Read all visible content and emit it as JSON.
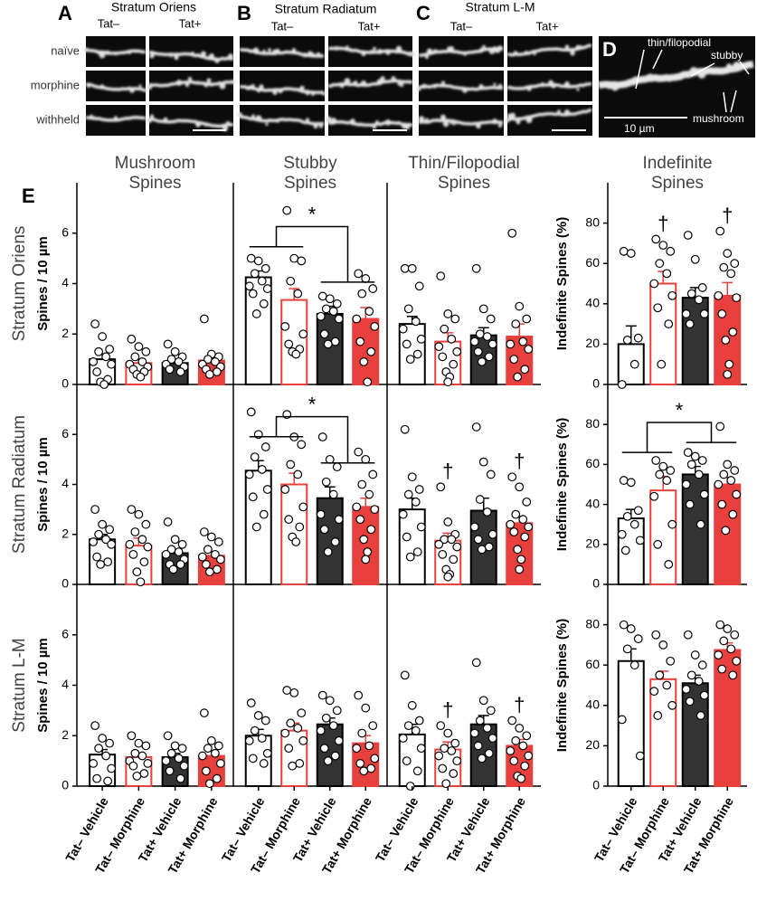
{
  "panel_a": {
    "label": "A",
    "title": "Stratum Oriens",
    "columns": [
      "Tat–",
      "Tat+"
    ]
  },
  "panel_b": {
    "label": "B",
    "title": "Stratum Radiatum",
    "columns": [
      "Tat–",
      "Tat+"
    ]
  },
  "panel_c": {
    "label": "C",
    "title": "Stratum L-M",
    "columns": [
      "Tat–",
      "Tat+"
    ]
  },
  "image_rows": [
    "naïve",
    "morphine",
    "withheld"
  ],
  "panel_d": {
    "label": "D",
    "annotations": [
      "thin/filopodial",
      "stubby",
      "mushroom"
    ],
    "scale_bar": "10 µm"
  },
  "panel_e_label": "E",
  "categories": [
    "Tat– Vehicle",
    "Tat– Morphine",
    "Tat+ Vehicle",
    "Tat+ Morphine"
  ],
  "bar_fills": [
    "#ffffff",
    "#ffffff",
    "#333333",
    "#e8403c"
  ],
  "bar_edges": [
    "#000000",
    "#e8403c",
    "#000000",
    "#e8403c"
  ],
  "chart_data": [
    {
      "type": "bar",
      "title": [
        "Mushroom",
        "Spines"
      ],
      "row_label": "Stratum Oriens",
      "ylabel": "Spines / 10 µm",
      "ylim": [
        0,
        8
      ],
      "yticks": [
        0,
        2,
        4,
        6
      ],
      "values": [
        1.0,
        0.85,
        0.85,
        0.95
      ],
      "errors": [
        0.2,
        0.12,
        0.1,
        0.15
      ],
      "points": [
        [
          2.4,
          1.9,
          1.4,
          1.3,
          1.1,
          0.9,
          0.8,
          0.5,
          0.2,
          0.1,
          0.0
        ],
        [
          1.8,
          1.5,
          1.3,
          1.1,
          0.9,
          0.8,
          0.7,
          0.6,
          0.5,
          0.4,
          0.3
        ],
        [
          1.6,
          1.3,
          1.1,
          1.0,
          0.9,
          0.8,
          0.7,
          0.6,
          0.5
        ],
        [
          2.6,
          1.2,
          1.1,
          1.0,
          0.9,
          0.8,
          0.7,
          0.6,
          0.5,
          0.4
        ]
      ]
    },
    {
      "type": "bar",
      "title": [
        "Stubby",
        "Spines"
      ],
      "ylim": [
        0,
        8
      ],
      "values": [
        4.25,
        3.35,
        2.8,
        2.6
      ],
      "errors": [
        0.25,
        0.45,
        0.3,
        0.45
      ],
      "comparison": "*",
      "points": [
        [
          5.0,
          4.9,
          4.6,
          4.4,
          4.1,
          3.9,
          3.8,
          3.6,
          3.2,
          2.8
        ],
        [
          6.9,
          5.0,
          4.9,
          4.1,
          3.6,
          2.3,
          2.0,
          1.6,
          1.4,
          1.3,
          1.2
        ],
        [
          3.5,
          3.4,
          3.2,
          3.0,
          2.9,
          2.7,
          2.6,
          2.0,
          1.7,
          1.6
        ],
        [
          4.4,
          4.2,
          3.8,
          3.6,
          2.9,
          2.6,
          2.3,
          1.7,
          1.3,
          0.9,
          0.1
        ]
      ]
    },
    {
      "type": "bar",
      "title": [
        "Thin/Filopodial",
        "Spines"
      ],
      "ylim": [
        0,
        8
      ],
      "values": [
        2.4,
        1.7,
        1.95,
        1.9
      ],
      "errors": [
        0.3,
        0.35,
        0.3,
        0.5
      ],
      "points": [
        [
          4.6,
          4.6,
          3.9,
          3.0,
          2.5,
          2.2,
          1.8,
          1.6,
          1.2,
          1.0
        ],
        [
          4.3,
          2.8,
          2.6,
          2.2,
          1.8,
          1.5,
          1.3,
          1.1,
          0.8,
          0.5,
          0.3,
          0.1
        ],
        [
          4.6,
          3.0,
          2.6,
          2.0,
          1.9,
          1.7,
          1.6,
          1.3,
          1.1,
          0.9
        ],
        [
          6.0,
          3.1,
          2.6,
          2.4,
          1.7,
          1.6,
          1.4,
          1.0,
          0.6,
          0.3
        ]
      ]
    },
    {
      "type": "bar",
      "title": [
        "Indefinite",
        "Spines"
      ],
      "ylabel": "Indefinite Spines (%)",
      "ylim": [
        0,
        100
      ],
      "yticks": [
        0,
        20,
        40,
        60,
        80
      ],
      "values": [
        20,
        50,
        43,
        44
      ],
      "errors": [
        9,
        6,
        5,
        6.5
      ],
      "markers": [
        null,
        "†",
        null,
        "†"
      ],
      "points": [
        [
          66,
          65,
          23,
          22,
          10,
          0
        ],
        [
          72,
          69,
          66,
          60,
          55,
          50,
          44,
          38,
          30,
          10
        ],
        [
          74,
          62,
          48,
          45,
          42,
          35,
          35,
          30
        ],
        [
          76,
          65,
          60,
          58,
          55,
          44,
          43,
          35,
          26,
          22,
          10,
          5
        ]
      ]
    },
    {
      "type": "bar",
      "row_label": "Stratum Radiatum",
      "ylabel": "Spines / 10 µm",
      "ylim": [
        0,
        8
      ],
      "yticks": [
        0,
        2,
        4,
        6
      ],
      "values": [
        1.8,
        1.55,
        1.25,
        1.15
      ],
      "errors": [
        0.2,
        0.3,
        0.15,
        0.15
      ],
      "points": [
        [
          3.0,
          2.4,
          2.2,
          2.0,
          1.8,
          1.7,
          1.6,
          1.1,
          0.9,
          0.8
        ],
        [
          3.0,
          2.8,
          2.4,
          2.1,
          1.8,
          1.6,
          1.5,
          1.2,
          0.9,
          0.5,
          0.1
        ],
        [
          2.5,
          1.8,
          1.6,
          1.4,
          1.3,
          1.2,
          1.0,
          0.8,
          0.8,
          0.6
        ],
        [
          2.1,
          1.9,
          1.7,
          1.4,
          1.2,
          1.1,
          1.0,
          0.8,
          0.6,
          0.5
        ]
      ]
    },
    {
      "type": "bar",
      "ylim": [
        0,
        8
      ],
      "values": [
        4.55,
        4.0,
        3.45,
        3.1
      ],
      "errors": [
        0.4,
        0.45,
        0.45,
        0.35
      ],
      "comparison": "*",
      "points": [
        [
          6.9,
          6.0,
          5.5,
          5.1,
          4.6,
          4.4,
          3.8,
          3.5,
          2.8,
          2.3
        ],
        [
          6.8,
          5.9,
          5.6,
          4.8,
          4.4,
          3.8,
          3.1,
          2.6,
          2.3,
          1.9,
          1.7
        ],
        [
          5.9,
          5.0,
          4.7,
          4.1,
          3.6,
          2.8,
          2.6,
          2.2,
          1.7,
          1.3
        ],
        [
          5.3,
          5.0,
          4.4,
          4.0,
          3.6,
          3.1,
          3.0,
          2.6,
          2.2,
          1.8,
          1.3,
          1.0
        ]
      ]
    },
    {
      "type": "bar",
      "ylim": [
        0,
        8
      ],
      "values": [
        3.0,
        1.75,
        2.95,
        2.45
      ],
      "errors": [
        0.45,
        0.3,
        0.5,
        0.25
      ],
      "markers": [
        null,
        "†",
        null,
        "†"
      ],
      "points": [
        [
          6.2,
          4.3,
          3.8,
          3.6,
          3.3,
          2.8,
          2.3,
          1.9,
          1.3,
          1.1
        ],
        [
          3.9,
          2.5,
          2.0,
          1.8,
          1.8,
          1.6,
          1.5,
          1.2,
          1.0,
          0.6,
          0.4,
          0.3
        ],
        [
          6.3,
          4.9,
          4.4,
          3.4,
          2.9,
          2.3,
          2.0,
          1.8,
          1.5,
          1.4
        ],
        [
          4.3,
          3.9,
          3.3,
          2.8,
          2.6,
          2.4,
          2.3,
          2.1,
          1.9,
          1.4,
          1.0,
          0.6
        ]
      ]
    },
    {
      "type": "bar",
      "ylabel": "Indefinite Spines (%)",
      "ylim": [
        0,
        100
      ],
      "yticks": [
        0,
        20,
        40,
        60,
        80
      ],
      "values": [
        33,
        47,
        55,
        50
      ],
      "errors": [
        4.5,
        7,
        4,
        3.5
      ],
      "comparison": "*",
      "points": [
        [
          52,
          51,
          37,
          34,
          30,
          25,
          22,
          17
        ],
        [
          62,
          59,
          57,
          55,
          52,
          44,
          30,
          20,
          10
        ],
        [
          66,
          64,
          62,
          60,
          55,
          50,
          45,
          40,
          30
        ],
        [
          79,
          60,
          57,
          55,
          52,
          50,
          45,
          40,
          35,
          27
        ]
      ]
    },
    {
      "type": "bar",
      "row_label": "Stratum L-M",
      "ylabel": "Spines / 10 µm",
      "ylim": [
        0,
        8
      ],
      "yticks": [
        0,
        2,
        4,
        6
      ],
      "values": [
        1.25,
        1.15,
        1.15,
        1.2
      ],
      "errors": [
        0.2,
        0.15,
        0.15,
        0.2
      ],
      "points": [
        [
          2.4,
          1.9,
          1.7,
          1.5,
          1.2,
          0.9,
          0.7,
          0.3,
          0.2
        ],
        [
          2.0,
          1.7,
          1.6,
          1.3,
          1.2,
          1.0,
          0.9,
          0.8,
          0.5,
          0.4
        ],
        [
          2.0,
          1.6,
          1.5,
          1.3,
          1.1,
          1.0,
          0.8,
          0.6,
          0.3
        ],
        [
          2.9,
          1.8,
          1.6,
          1.5,
          1.3,
          1.2,
          0.9,
          0.6,
          0.3,
          0.1
        ]
      ]
    },
    {
      "type": "bar",
      "ylim": [
        0,
        8
      ],
      "values": [
        2.0,
        2.2,
        2.45,
        1.7
      ],
      "errors": [
        0.25,
        0.3,
        0.25,
        0.3
      ],
      "points": [
        [
          3.3,
          2.8,
          2.6,
          2.2,
          1.9,
          1.8,
          1.3,
          1.1,
          0.9
        ],
        [
          3.8,
          3.7,
          2.9,
          2.5,
          2.3,
          2.1,
          1.8,
          1.5,
          0.9,
          0.8
        ],
        [
          3.6,
          3.4,
          3.0,
          2.7,
          2.4,
          2.2,
          1.8,
          1.5,
          1.2,
          1.0
        ],
        [
          3.6,
          3.1,
          2.4,
          2.1,
          1.6,
          1.5,
          1.1,
          0.9,
          0.7,
          0.6
        ]
      ]
    },
    {
      "type": "bar",
      "ylim": [
        0,
        8
      ],
      "values": [
        2.05,
        1.45,
        2.45,
        1.6
      ],
      "errors": [
        0.4,
        0.3,
        0.35,
        0.25
      ],
      "markers": [
        null,
        "†",
        null,
        "†"
      ],
      "points": [
        [
          4.4,
          3.2,
          2.6,
          2.4,
          2.2,
          1.9,
          1.5,
          1.0,
          0.6,
          0.0
        ],
        [
          2.4,
          2.1,
          1.7,
          1.5,
          1.4,
          1.2,
          1.0,
          0.7,
          0.5,
          0.1
        ],
        [
          4.9,
          3.4,
          3.0,
          2.6,
          2.3,
          2.1,
          1.9,
          1.6,
          1.3,
          1.1
        ],
        [
          2.6,
          2.3,
          2.0,
          1.8,
          1.6,
          1.4,
          1.2,
          1.0,
          0.8,
          0.4,
          0.3
        ]
      ]
    },
    {
      "type": "bar",
      "ylabel": "Indefinite Spines (%)",
      "ylim": [
        0,
        100
      ],
      "yticks": [
        0,
        20,
        40,
        60,
        80
      ],
      "values": [
        62,
        53,
        51,
        67.5
      ],
      "errors": [
        6,
        4,
        4,
        3.5
      ],
      "points": [
        [
          80,
          78,
          73,
          68,
          60,
          33,
          15
        ],
        [
          75,
          70,
          62,
          55,
          50,
          47,
          40,
          35
        ],
        [
          75,
          65,
          60,
          55,
          52,
          48,
          45,
          42,
          35
        ],
        [
          80,
          78,
          75,
          72,
          68,
          65,
          62,
          58,
          55
        ]
      ]
    }
  ]
}
